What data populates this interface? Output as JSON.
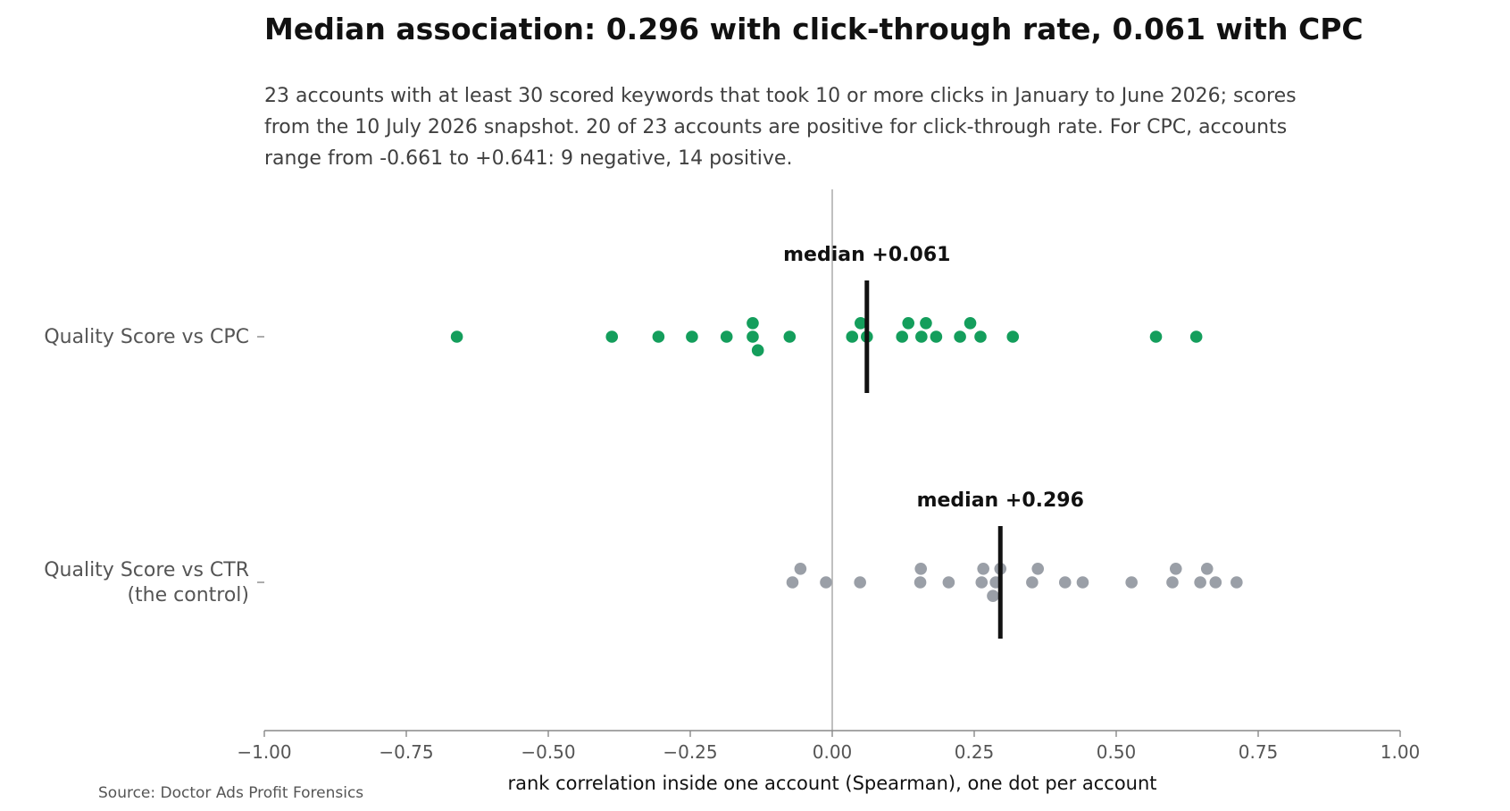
{
  "chart_data": {
    "type": "scatter",
    "title": "Median association: 0.296 with click-through rate, 0.061 with CPC",
    "subtitle_lines": [
      "23 accounts with at least 30 scored keywords that took 10 or more clicks in January to June 2026; scores",
      "from the 10 July 2026 snapshot. 20 of 23 accounts are positive for click-through rate. For CPC, accounts",
      "range from -0.661 to +0.641: 9 negative, 14 positive."
    ],
    "xlabel": "rank correlation inside one account (Spearman), one dot per account",
    "source": "Source: Doctor Ads Profit Forensics",
    "xlim": [
      -1.0,
      1.0
    ],
    "xticks": [
      -1.0,
      -0.75,
      -0.5,
      -0.25,
      0.0,
      0.25,
      0.5,
      0.75,
      1.0
    ],
    "xtick_labels": [
      "−1.00",
      "−0.75",
      "−0.50",
      "−0.25",
      "0.00",
      "0.25",
      "0.50",
      "0.75",
      "1.00"
    ],
    "zero_line": 0.0,
    "series": [
      {
        "category_lines": [
          "Quality Score vs CPC"
        ],
        "color": "#149e5c",
        "median": 0.061,
        "median_label": "median +0.061",
        "values": [
          -0.661,
          -0.388,
          -0.306,
          -0.247,
          -0.186,
          -0.14,
          -0.14,
          -0.131,
          -0.075,
          0.035,
          0.05,
          0.061,
          0.123,
          0.134,
          0.157,
          0.165,
          0.183,
          0.225,
          0.243,
          0.261,
          0.318,
          0.57,
          0.641
        ]
      },
      {
        "category_lines": [
          "Quality Score vs CTR",
          "(the control)"
        ],
        "color": "#9a9fa7",
        "median": 0.296,
        "median_label": "median +0.296",
        "values": [
          -0.07,
          -0.056,
          -0.011,
          0.049,
          0.155,
          0.156,
          0.205,
          0.263,
          0.266,
          0.283,
          0.288,
          0.296,
          0.352,
          0.362,
          0.41,
          0.441,
          0.527,
          0.599,
          0.605,
          0.648,
          0.66,
          0.675,
          0.712
        ]
      }
    ]
  }
}
